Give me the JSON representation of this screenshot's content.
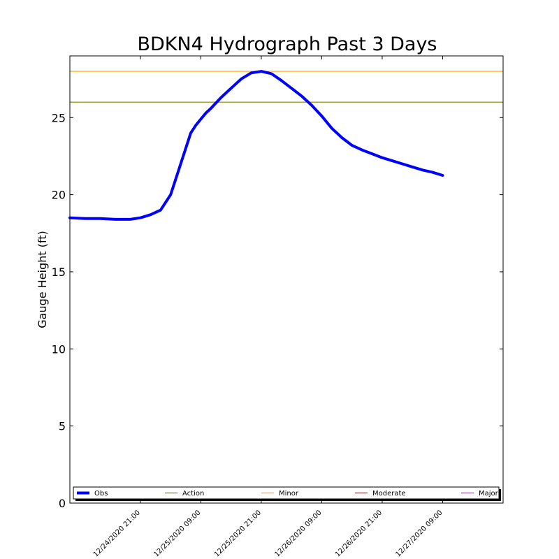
{
  "chart_data": {
    "type": "line",
    "title": "BDKN4 Hydrograph Past 3 Days",
    "ylabel": "Gauge Height (ft)",
    "xlabel": "",
    "ylim": [
      0,
      29
    ],
    "xlim_hours": [
      0,
      86
    ],
    "y_ticks": [
      0,
      5,
      10,
      15,
      20,
      25
    ],
    "x_ticks": [
      {
        "hour": 14,
        "label": "12/24/2020 21:00"
      },
      {
        "hour": 26,
        "label": "12/25/2020 09:00"
      },
      {
        "hour": 38,
        "label": "12/25/2020 21:00"
      },
      {
        "hour": 50,
        "label": "12/26/2020 09:00"
      },
      {
        "hour": 62,
        "label": "12/26/2020 21:00"
      },
      {
        "hour": 74,
        "label": "12/27/2020 09:00"
      }
    ],
    "grid": false,
    "legend_placement": "bottom",
    "series": [
      {
        "name": "Obs",
        "color": "#0000ff",
        "x_hours": [
          0,
          3,
          6,
          9,
          12,
          14,
          16,
          18,
          20,
          22,
          24,
          25,
          26,
          27,
          28,
          30,
          32,
          34,
          36,
          38,
          40,
          42,
          44,
          46,
          48,
          50,
          52,
          54,
          56,
          58,
          60,
          62,
          64,
          66,
          68,
          70,
          72,
          74
        ],
        "values": [
          18.5,
          18.45,
          18.45,
          18.4,
          18.4,
          18.5,
          18.7,
          19.0,
          20.0,
          22.0,
          24.0,
          24.5,
          24.9,
          25.3,
          25.6,
          26.3,
          26.9,
          27.5,
          27.9,
          28.0,
          27.85,
          27.4,
          26.9,
          26.4,
          25.8,
          25.1,
          24.3,
          23.7,
          23.2,
          22.9,
          22.65,
          22.4,
          22.2,
          22.0,
          21.8,
          21.6,
          21.45,
          21.25
        ]
      }
    ],
    "thresholds": [
      {
        "name": "Action",
        "value": 26.0,
        "color": "#808000"
      },
      {
        "name": "Minor",
        "value": 28.0,
        "color": "#ffa500"
      },
      {
        "name": "Moderate",
        "value": null,
        "color": "#ff0000"
      },
      {
        "name": "Major",
        "value": null,
        "color": "#ff00ff"
      }
    ]
  }
}
